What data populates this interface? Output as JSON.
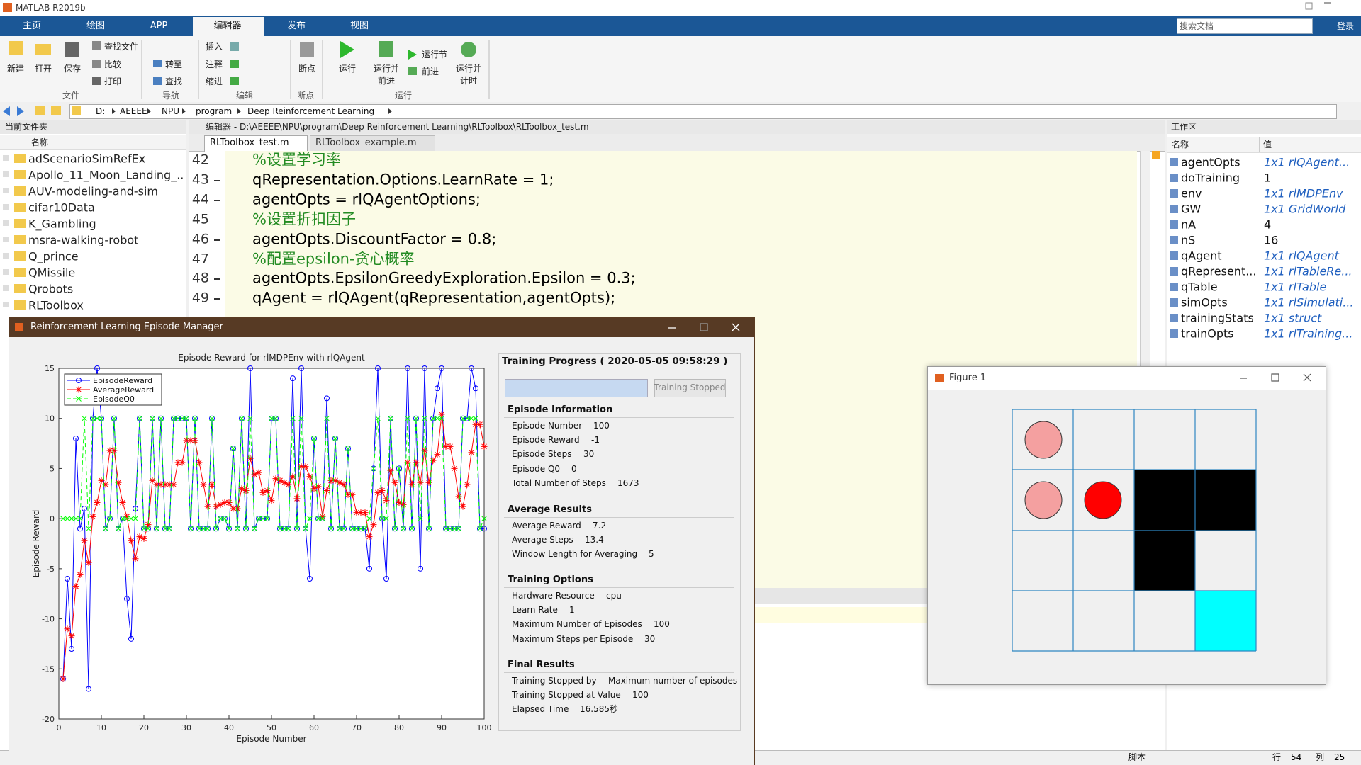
{
  "window": {
    "title": "MATLAB R2019b"
  },
  "tabs": [
    "主页",
    "绘图",
    "APP",
    "编辑器",
    "发布",
    "视图"
  ],
  "search_placeholder": "搜索文档",
  "login": "登录",
  "ribbon": {
    "labels": [
      "新建",
      "打开",
      "保存",
      "查找文件",
      "比较",
      "打印",
      "转至",
      "查找",
      "插入",
      "注释",
      "缩进",
      "断点",
      "运行",
      "运行并",
      "前进",
      "运行节",
      "前进",
      "运行并",
      "计时"
    ],
    "groups": [
      "文件",
      "导航",
      "编辑",
      "断点",
      "运行"
    ]
  },
  "address": [
    "D:",
    "AEEEE",
    "NPU",
    "program",
    "Deep Reinforcement Learning"
  ],
  "current_folder": {
    "title": "当前文件夹",
    "column": "名称",
    "items": [
      "adScenarioSimRefEx",
      "Apollo_11_Moon_Landing_...",
      "AUV-modeling-and-sim",
      "cifar10Data",
      "K_Gambling",
      "msra-walking-robot",
      "Q_prince",
      "QMissile",
      "Qrobots",
      "RLToolbox"
    ]
  },
  "editor": {
    "header": "编辑器 - D:\\AEEEE\\NPU\\program\\Deep Reinforcement Learning\\RLToolbox\\RLToolbox_test.m",
    "tabs": [
      "RLToolbox_test.m",
      "RLToolbox_example.m"
    ],
    "lines": [
      {
        "number": 42,
        "code": "%设置学习率",
        "comment": true,
        "executable": false
      },
      {
        "number": 43,
        "code": "qRepresentation.Options.LearnRate = 1;",
        "comment": false,
        "executable": true
      },
      {
        "number": 44,
        "code": "agentOpts = rlQAgentOptions;",
        "comment": false,
        "executable": true
      },
      {
        "number": 45,
        "code": "%设置折扣因子",
        "comment": true,
        "executable": false
      },
      {
        "number": 46,
        "code": "agentOpts.DiscountFactor = 0.8;",
        "comment": false,
        "executable": true
      },
      {
        "number": 47,
        "code": "%配置epsilon-贪心概率",
        "comment": true,
        "executable": false
      },
      {
        "number": 48,
        "code": "agentOpts.EpsilonGreedyExploration.Epsilon = 0.3;",
        "comment": false,
        "executable": true
      },
      {
        "number": 49,
        "code": "qAgent = rlQAgent(qRepresentation,agentOpts);",
        "comment": false,
        "executable": true
      }
    ]
  },
  "workspace": {
    "title": "工作区",
    "columns": [
      "名称",
      "值"
    ],
    "rows": [
      [
        "agentOpts",
        "1x1 rlQAgent..."
      ],
      [
        "doTraining",
        "1"
      ],
      [
        "env",
        "1x1 rlMDPEnv"
      ],
      [
        "GW",
        "1x1 GridWorld"
      ],
      [
        "nA",
        "4"
      ],
      [
        "nS",
        "16"
      ],
      [
        "qAgent",
        "1x1 rlQAgent"
      ],
      [
        "qRepresent...",
        "1x1 rlTableRe..."
      ],
      [
        "qTable",
        "1x1 rlTable"
      ],
      [
        "simOpts",
        "1x1 rlSimulati..."
      ],
      [
        "trainingStats",
        "1x1 struct"
      ],
      [
        "trainOpts",
        "1x1 rlTraining..."
      ]
    ]
  },
  "status": {
    "mode": "脚本",
    "row_label": "行",
    "row": "54",
    "col_label": "列",
    "col": "25"
  },
  "episode_manager": {
    "title": "Reinforcement Learning Episode Manager",
    "progress_title": "Training Progress ( 2020-05-05 09:58:29 )",
    "button": "Training Stopped",
    "sections": [
      {
        "title": "Episode Information",
        "items": [
          [
            "Episode Number",
            "100"
          ],
          [
            "Episode Reward",
            "-1"
          ],
          [
            "Episode Steps",
            "30"
          ],
          [
            "Episode Q0",
            "0"
          ],
          [
            "Total Number of Steps",
            "1673"
          ]
        ]
      },
      {
        "title": "Average Results",
        "items": [
          [
            "Average Reward",
            "7.2"
          ],
          [
            "Average Steps",
            "13.4"
          ],
          [
            "Window Length for Averaging",
            "5"
          ]
        ]
      },
      {
        "title": "Training Options",
        "items": [
          [
            "Hardware Resource",
            "cpu"
          ],
          [
            "Learn Rate",
            "1"
          ],
          [
            "Maximum Number of Episodes",
            "100"
          ],
          [
            "Maximum Steps per Episode",
            "30"
          ]
        ]
      },
      {
        "title": "Final Results",
        "items": [
          [
            "Training Stopped by",
            "Maximum number of episodes"
          ],
          [
            "Training Stopped at Value",
            "100"
          ],
          [
            "Elapsed Time",
            "16.585秒"
          ]
        ]
      }
    ]
  },
  "figure": {
    "title": "Figure 1"
  },
  "chart_data": {
    "type": "line",
    "title": "Episode Reward for rlMDPEnv with rlQAgent",
    "x_label": "Episode Number",
    "y_label": "Episode Reward",
    "x": [
      1,
      2,
      3,
      4,
      5,
      6,
      7,
      8,
      9,
      10,
      11,
      12,
      13,
      14,
      15,
      16,
      17,
      18,
      19,
      20,
      21,
      22,
      23,
      24,
      25,
      26,
      27,
      28,
      29,
      30,
      31,
      32,
      33,
      34,
      35,
      36,
      37,
      38,
      39,
      40,
      41,
      42,
      43,
      44,
      45,
      46,
      47,
      48,
      49,
      50,
      51,
      52,
      53,
      54,
      55,
      56,
      57,
      58,
      59,
      60,
      61,
      62,
      63,
      64,
      65,
      66,
      67,
      68,
      69,
      70,
      71,
      72,
      73,
      74,
      75,
      76,
      77,
      78,
      79,
      80,
      81,
      82,
      83,
      84,
      85,
      86,
      87,
      88,
      89,
      90,
      91,
      92,
      93,
      94,
      95,
      96,
      97,
      98,
      99,
      100
    ],
    "xlim": [
      0,
      100
    ],
    "xticks": [
      0,
      10,
      20,
      30,
      40,
      50,
      60,
      70,
      80,
      90,
      100
    ],
    "ylim": [
      -20,
      15
    ],
    "yticks": [
      -20,
      -15,
      -10,
      -5,
      0,
      5,
      10,
      15
    ],
    "grid": false,
    "legend": "upper left",
    "series": [
      {
        "name": "EpisodeReward",
        "color": "#0000ff",
        "marker": "o",
        "linestyle": "solid",
        "values": [
          -16,
          -6,
          -13,
          8,
          -1,
          1,
          -17,
          10,
          15,
          10,
          -1,
          0,
          10,
          -1,
          0,
          -8,
          -12,
          1,
          10,
          -1,
          -1,
          10,
          -1,
          10,
          -1,
          -1,
          10,
          10,
          10,
          10,
          -1,
          10,
          -1,
          -1,
          -1,
          10,
          -1,
          0,
          0,
          -1,
          7,
          -1,
          10,
          -1,
          15,
          -1,
          0,
          0,
          0,
          10,
          10,
          -1,
          -1,
          -1,
          14,
          -1,
          15,
          -1,
          -6,
          8,
          0,
          0,
          12,
          -1,
          8,
          -1,
          -1,
          7,
          -1,
          -1,
          -1,
          -1,
          -5,
          5,
          15,
          0,
          -6,
          10,
          -1,
          5,
          -1,
          15,
          -1,
          10,
          -5,
          15,
          -1,
          10,
          13,
          15,
          -1,
          -1,
          -1,
          -1,
          10,
          10,
          15,
          13,
          -1,
          -1
        ]
      },
      {
        "name": "AverageReward",
        "color": "#ff0000",
        "marker": "*",
        "linestyle": "solid",
        "values": [
          -16,
          -11,
          -11.7,
          -6.75,
          -5.6,
          -2.2,
          -4.4,
          0.2,
          1.6,
          3.8,
          3.4,
          6.8,
          6.8,
          3.6,
          1.6,
          0.2,
          -2.2,
          -4,
          -1.8,
          -2,
          -0.6,
          3.8,
          3.4,
          3.4,
          3.4,
          3.4,
          3.4,
          5.6,
          5.6,
          7.8,
          7.8,
          7.8,
          5.6,
          3.4,
          1.2,
          3.4,
          1.2,
          1.4,
          1.6,
          1.6,
          1,
          1,
          3,
          2.8,
          6,
          4.4,
          4.6,
          2.6,
          2.8,
          1.8,
          4,
          3.8,
          3.6,
          3.4,
          4.2,
          2,
          5.2,
          5.2,
          4.2,
          3,
          3.2,
          0.2,
          2.8,
          3.8,
          3.8,
          3.6,
          3.4,
          2.4,
          2.4,
          0.6,
          0.6,
          0.6,
          -1.8,
          -0.6,
          2.6,
          2.8,
          1.8,
          4.8,
          3.6,
          1.6,
          1.4,
          5.6,
          3.4,
          5.6,
          3.6,
          6.8,
          3.6,
          5.8,
          6.4,
          10.4,
          7.2,
          7.2,
          5,
          2.2,
          1.2,
          3.4,
          6.6,
          9.4,
          9.4,
          7.2
        ]
      },
      {
        "name": "EpisodeQ0",
        "color": "#00ff00",
        "marker": "x",
        "linestyle": "dashed",
        "values": [
          0,
          0,
          0,
          0,
          0,
          10,
          -1,
          10,
          10,
          10,
          -1,
          0,
          10,
          -1,
          0,
          0,
          0,
          0,
          10,
          -1,
          -1,
          10,
          -1,
          10,
          -1,
          -1,
          10,
          10,
          10,
          10,
          -1,
          10,
          -1,
          -1,
          -1,
          10,
          -1,
          0,
          0,
          -1,
          7,
          -1,
          10,
          -1,
          10,
          -1,
          0,
          0,
          0,
          10,
          10,
          -1,
          -1,
          -1,
          10,
          -1,
          10,
          -1,
          0,
          8,
          0,
          0,
          10,
          -1,
          8,
          -1,
          -1,
          7,
          -1,
          -1,
          -1,
          -1,
          0,
          5,
          10,
          0,
          0,
          10,
          -1,
          5,
          -1,
          10,
          -1,
          10,
          0,
          10,
          -1,
          10,
          10,
          10,
          -1,
          -1,
          -1,
          -1,
          10,
          10,
          10,
          10,
          -1,
          0
        ]
      }
    ]
  }
}
